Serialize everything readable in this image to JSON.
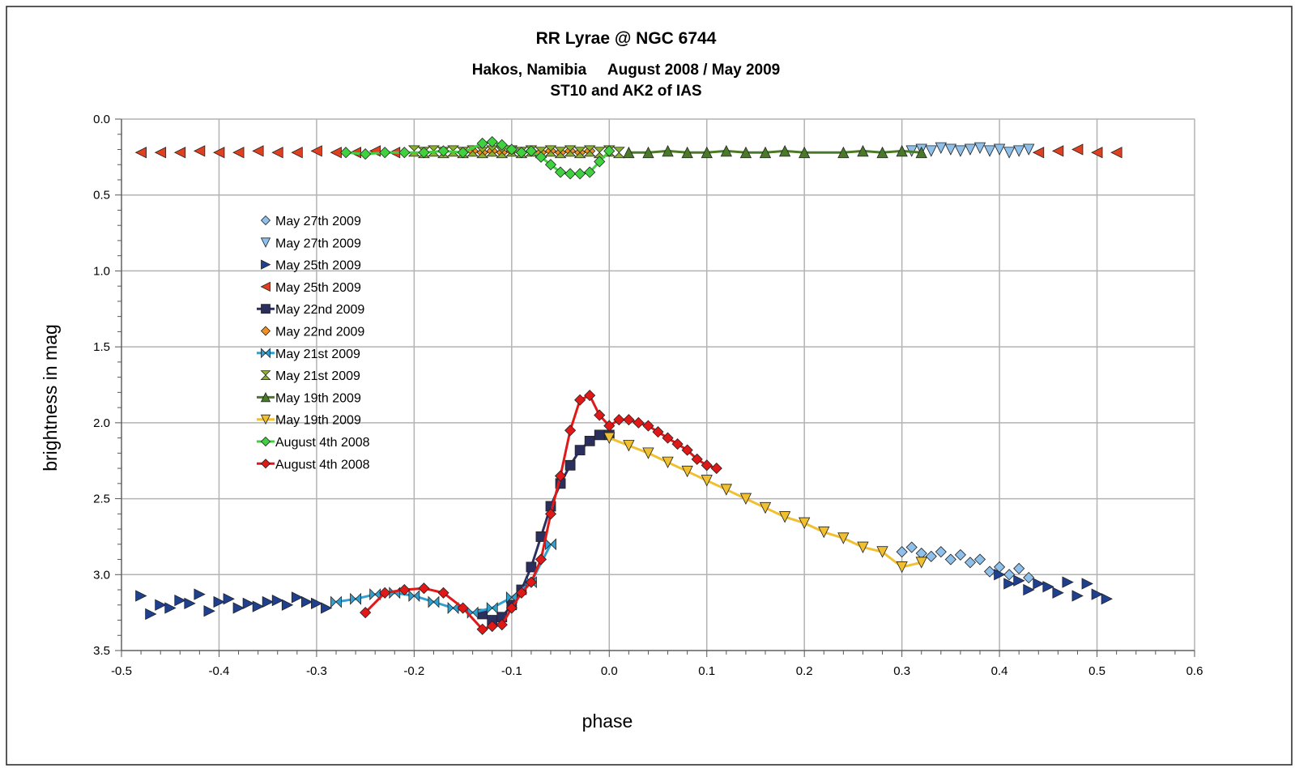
{
  "chart_data": {
    "type": "scatter",
    "title": "RR Lyrae @ NGC 6744",
    "subtitle_lines": [
      "Hakos, Namibia     August 2008 / May 2009",
      "ST10 and AK2 of IAS"
    ],
    "xlabel": "phase",
    "ylabel": "brightness in mag",
    "xlim": [
      -0.5,
      0.6
    ],
    "ylim": [
      0.0,
      3.5
    ],
    "y_inverted": true,
    "x_ticks": [
      "-0.5",
      "-0.4",
      "-0.3",
      "-0.2",
      "-0.1",
      "0.0",
      "0.1",
      "0.2",
      "0.3",
      "0.4",
      "0.5",
      "0.6"
    ],
    "y_ticks": [
      "0.0",
      "0.5",
      "1.0",
      "1.5",
      "2.0",
      "2.5",
      "3.0",
      "3.5"
    ],
    "grid": true,
    "legend_position": "upper-left inside plot",
    "series": [
      {
        "name": "May 27th 2009",
        "marker": "diamond",
        "color": "#8fc0ea",
        "line": false,
        "x": [
          0.3,
          0.31,
          0.32,
          0.33,
          0.34,
          0.35,
          0.36,
          0.37,
          0.38,
          0.39,
          0.4,
          0.41,
          0.42,
          0.43
        ],
        "y": [
          2.85,
          2.82,
          2.86,
          2.88,
          2.85,
          2.9,
          2.87,
          2.92,
          2.9,
          2.98,
          2.95,
          3.0,
          2.96,
          3.02
        ]
      },
      {
        "name": "May 27th 2009",
        "marker": "tri-down",
        "color": "#8fc0ea",
        "line": false,
        "x": [
          0.31,
          0.32,
          0.33,
          0.34,
          0.35,
          0.36,
          0.37,
          0.38,
          0.39,
          0.4,
          0.41,
          0.42,
          0.43
        ],
        "y": [
          0.21,
          0.2,
          0.21,
          0.19,
          0.2,
          0.21,
          0.2,
          0.19,
          0.21,
          0.2,
          0.22,
          0.21,
          0.2
        ]
      },
      {
        "name": "May 25th 2009",
        "marker": "tri-right",
        "color": "#1f3f8f",
        "line": false,
        "x": [
          -0.48,
          -0.47,
          -0.46,
          -0.45,
          -0.44,
          -0.43,
          -0.42,
          -0.41,
          -0.4,
          -0.39,
          -0.38,
          -0.37,
          -0.36,
          -0.35,
          -0.34,
          -0.33,
          -0.32,
          -0.31,
          -0.3,
          -0.29,
          0.4,
          0.41,
          0.42,
          0.43,
          0.44,
          0.45,
          0.46,
          0.47,
          0.48,
          0.49,
          0.5,
          0.51
        ],
        "y": [
          3.14,
          3.26,
          3.2,
          3.22,
          3.17,
          3.19,
          3.13,
          3.24,
          3.18,
          3.16,
          3.22,
          3.19,
          3.21,
          3.18,
          3.17,
          3.2,
          3.15,
          3.18,
          3.19,
          3.22,
          3.0,
          3.06,
          3.04,
          3.1,
          3.06,
          3.08,
          3.12,
          3.05,
          3.14,
          3.06,
          3.13,
          3.16
        ]
      },
      {
        "name": "May 25th 2009",
        "marker": "tri-left",
        "color": "#e04020",
        "line": false,
        "x": [
          -0.48,
          -0.46,
          -0.44,
          -0.42,
          -0.4,
          -0.38,
          -0.36,
          -0.34,
          -0.32,
          -0.3,
          -0.28,
          -0.26,
          -0.24,
          -0.22,
          0.44,
          0.46,
          0.48,
          0.5,
          0.52
        ],
        "y": [
          0.22,
          0.22,
          0.22,
          0.21,
          0.22,
          0.22,
          0.21,
          0.22,
          0.22,
          0.21,
          0.22,
          0.22,
          0.21,
          0.22,
          0.22,
          0.21,
          0.2,
          0.22,
          0.22
        ]
      },
      {
        "name": "May 22nd 2009",
        "marker": "square",
        "color": "#2b2f5e",
        "line": true,
        "x": [
          -0.13,
          -0.12,
          -0.11,
          -0.1,
          -0.09,
          -0.08,
          -0.07,
          -0.06,
          -0.05,
          -0.04,
          -0.03,
          -0.02,
          -0.01,
          0.0
        ],
        "y": [
          3.26,
          3.3,
          3.28,
          3.2,
          3.1,
          2.95,
          2.75,
          2.55,
          2.4,
          2.28,
          2.18,
          2.12,
          2.08,
          2.08
        ]
      },
      {
        "name": "May 22nd 2009",
        "marker": "diamond",
        "color": "#f09020",
        "line": false,
        "x": [
          -0.14,
          -0.13,
          -0.12,
          -0.11,
          -0.1,
          -0.09,
          -0.08,
          -0.07,
          -0.06,
          -0.05,
          -0.04,
          -0.03,
          -0.02
        ],
        "y": [
          0.21,
          0.22,
          0.21,
          0.22,
          0.21,
          0.22,
          0.21,
          0.22,
          0.21,
          0.22,
          0.21,
          0.22,
          0.21
        ]
      },
      {
        "name": "May 21st 2009",
        "marker": "bowtie",
        "color": "#30a0d0",
        "line": true,
        "x": [
          -0.28,
          -0.26,
          -0.24,
          -0.22,
          -0.2,
          -0.18,
          -0.16,
          -0.14,
          -0.12,
          -0.1,
          -0.08,
          -0.06
        ],
        "y": [
          3.18,
          3.16,
          3.13,
          3.12,
          3.14,
          3.18,
          3.22,
          3.25,
          3.22,
          3.15,
          3.05,
          2.8
        ]
      },
      {
        "name": "May 21st 2009",
        "marker": "hourglass",
        "color": "#8ab030",
        "line": false,
        "x": [
          -0.2,
          -0.19,
          -0.18,
          -0.17,
          -0.16,
          -0.15,
          -0.14,
          -0.13,
          -0.12,
          -0.11,
          -0.1,
          -0.09,
          -0.08,
          -0.07,
          -0.06,
          -0.05,
          -0.04,
          -0.03,
          -0.02,
          -0.01,
          0.0,
          0.01
        ],
        "y": [
          0.21,
          0.22,
          0.21,
          0.22,
          0.21,
          0.22,
          0.21,
          0.22,
          0.21,
          0.22,
          0.21,
          0.22,
          0.21,
          0.22,
          0.21,
          0.22,
          0.21,
          0.22,
          0.21,
          0.22,
          0.21,
          0.22
        ]
      },
      {
        "name": "May 19th 2009",
        "marker": "tri-up",
        "color": "#4a7a28",
        "line": true,
        "x": [
          0.02,
          0.04,
          0.06,
          0.08,
          0.1,
          0.12,
          0.14,
          0.16,
          0.18,
          0.2,
          0.24,
          0.26,
          0.28,
          0.3,
          0.32
        ],
        "y": [
          0.22,
          0.22,
          0.21,
          0.22,
          0.22,
          0.21,
          0.22,
          0.22,
          0.21,
          0.22,
          0.22,
          0.21,
          0.22,
          0.21,
          0.22
        ]
      },
      {
        "name": "May 19th 2009",
        "marker": "tri-down",
        "color": "#f0c030",
        "line": true,
        "x": [
          0.0,
          0.02,
          0.04,
          0.06,
          0.08,
          0.1,
          0.12,
          0.14,
          0.16,
          0.18,
          0.2,
          0.22,
          0.24,
          0.26,
          0.28,
          0.3,
          0.32
        ],
        "y": [
          2.1,
          2.15,
          2.2,
          2.26,
          2.32,
          2.38,
          2.44,
          2.5,
          2.56,
          2.62,
          2.66,
          2.72,
          2.76,
          2.82,
          2.85,
          2.95,
          2.92
        ]
      },
      {
        "name": "August 4th 2008",
        "marker": "diamond",
        "color": "#40d040",
        "line": true,
        "x": [
          -0.27,
          -0.25,
          -0.23,
          -0.21,
          -0.19,
          -0.17,
          -0.15,
          -0.13,
          -0.12,
          -0.11,
          -0.1,
          -0.09,
          -0.08,
          -0.07,
          -0.06,
          -0.05,
          -0.04,
          -0.03,
          -0.02,
          -0.01,
          0.0
        ],
        "y": [
          0.22,
          0.23,
          0.22,
          0.22,
          0.22,
          0.21,
          0.22,
          0.16,
          0.15,
          0.17,
          0.2,
          0.22,
          0.21,
          0.25,
          0.3,
          0.35,
          0.36,
          0.36,
          0.35,
          0.28,
          0.21
        ]
      },
      {
        "name": "August 4th 2008",
        "marker": "diamond",
        "color": "#e01818",
        "line": true,
        "x": [
          -0.25,
          -0.23,
          -0.21,
          -0.19,
          -0.17,
          -0.15,
          -0.13,
          -0.12,
          -0.11,
          -0.1,
          -0.09,
          -0.08,
          -0.07,
          -0.06,
          -0.05,
          -0.04,
          -0.03,
          -0.02,
          -0.01,
          0.0,
          0.01,
          0.02,
          0.03,
          0.04,
          0.05,
          0.06,
          0.07,
          0.08,
          0.09,
          0.1,
          0.11
        ],
        "y": [
          3.25,
          3.12,
          3.1,
          3.09,
          3.12,
          3.22,
          3.36,
          3.34,
          3.33,
          3.22,
          3.12,
          3.05,
          2.9,
          2.6,
          2.35,
          2.05,
          1.85,
          1.82,
          1.95,
          2.02,
          1.98,
          1.98,
          2.0,
          2.02,
          2.06,
          2.1,
          2.14,
          2.18,
          2.24,
          2.28,
          2.3
        ]
      }
    ]
  }
}
